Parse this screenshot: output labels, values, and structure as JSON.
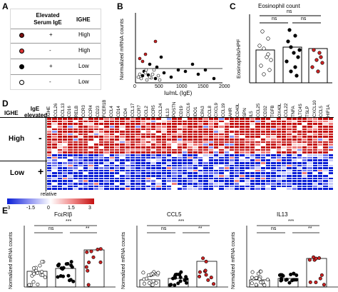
{
  "panel_labels": {
    "a": "A",
    "b": "B",
    "c": "C",
    "d": "D",
    "e": "E"
  },
  "panel_a": {
    "header_serum": "Elevated Serum IgE",
    "header_ighe": "IGHE",
    "rows": [
      {
        "marker": "dark-red",
        "serum": "+",
        "ighe": "High"
      },
      {
        "marker": "red",
        "serum": "-",
        "ighe": "High"
      },
      {
        "marker": "black",
        "serum": "+",
        "ighe": "Low"
      },
      {
        "marker": "white",
        "serum": "-",
        "ighe": "Low"
      }
    ],
    "colors": {
      "dark-red": "#7a1010",
      "red": "#d33",
      "black": "#000",
      "white": "#fff"
    }
  },
  "panel_b": {
    "xlabel": "Iu/mL (IgE)",
    "ylabel": "Normalized mRNA counts",
    "xticks": [
      "0",
      "500",
      "1000",
      "1500",
      "2000"
    ]
  },
  "panel_c": {
    "title": "Eosinophil count",
    "ylabel": "Eosinophils/HPF",
    "ns_top": "ns",
    "ns_left": "ns",
    "ns_right": "ns"
  },
  "panel_d": {
    "col_ighe": "IGHE",
    "col_elevated": "IgE elevated",
    "groups": [
      {
        "label": "High",
        "sign": "-"
      },
      {
        "label": "Low",
        "sign": "+"
      }
    ],
    "genes": [
      "IGHE",
      "CCL26",
      "CCL13",
      "CD16",
      "RELB",
      "CCR3",
      "CCR4",
      "CD23",
      "FCER1B",
      "CCL4",
      "CD14",
      "CD4",
      "CCL17",
      "CCR7",
      "CCL2",
      "CCR5",
      "CCL24",
      "IL13",
      "POSTN",
      "CD19",
      "CXCL6",
      "IDO1",
      "CPA3",
      "CCL8",
      "CXCL9",
      "CCL19",
      "AHR",
      "CD40L",
      "SPN",
      "IL5",
      "CCL25",
      "CD32",
      "TGFB",
      "OX40L",
      "CCL22",
      "TNFA",
      "LTC4S",
      "TSLP",
      "CXCL10",
      "CCL5",
      "HIF1A"
    ],
    "legend_label": "relative",
    "legend_ticks": [
      "-3",
      "-1.5",
      "0",
      "1.5",
      "3"
    ]
  },
  "panel_e": {
    "plots": [
      {
        "title": "FcεRIβ",
        "ylabel": "Normalized mRNA counts",
        "stars_top": "***",
        "ns": "ns",
        "stars_right": "**"
      },
      {
        "title": "CCL5",
        "ylabel": "Normalized mRNA counts",
        "stars_top": "***",
        "ns": "ns",
        "stars_right": "**"
      },
      {
        "title": "IL13",
        "ylabel": "Normalized mRNA counts",
        "stars_top": "***",
        "ns": "ns",
        "stars_right": "**"
      }
    ]
  }
}
